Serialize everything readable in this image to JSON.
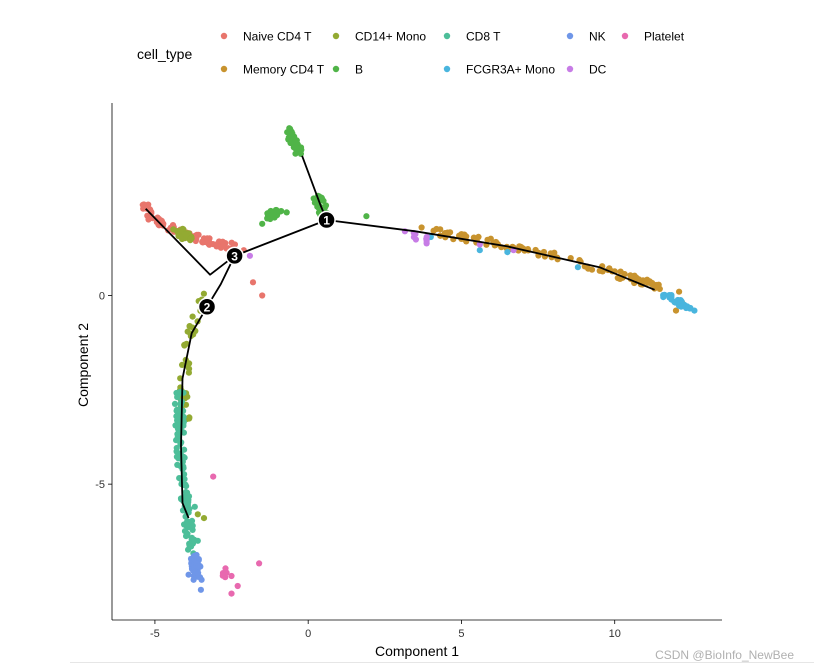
{
  "chart_data": {
    "type": "scatter",
    "title": "",
    "xlabel": "Component 1",
    "ylabel": "Component 2",
    "xlim": [
      -6.4,
      13.5
    ],
    "ylim": [
      -8.6,
      5.1
    ],
    "x_ticks": [
      -5,
      0,
      5,
      10
    ],
    "y_ticks": [
      -5,
      0
    ],
    "grid": false,
    "legend": {
      "title": "cell_type",
      "position": "top",
      "entries": [
        {
          "name": "Naive CD4 T",
          "color": "#E8756C"
        },
        {
          "name": "Memory CD4 T",
          "color": "#C8932E"
        },
        {
          "name": "CD14+ Mono",
          "color": "#93AA32"
        },
        {
          "name": "B",
          "color": "#50B448"
        },
        {
          "name": "CD8 T",
          "color": "#4DBE99"
        },
        {
          "name": "FCGR3A+ Mono",
          "color": "#49B5DE"
        },
        {
          "name": "NK",
          "color": "#6F96E8"
        },
        {
          "name": "DC",
          "color": "#C77CE6"
        },
        {
          "name": "Platelet",
          "color": "#E869AF"
        }
      ]
    },
    "trajectory": [
      {
        "points": [
          [
            -0.2,
            3.7
          ],
          [
            0.4,
            2.4
          ],
          [
            0.6,
            2.0
          ]
        ]
      },
      {
        "points": [
          [
            0.6,
            2.0
          ],
          [
            -2.4,
            1.05
          ]
        ]
      },
      {
        "points": [
          [
            0.6,
            2.0
          ],
          [
            3.5,
            1.7
          ],
          [
            6.5,
            1.3
          ],
          [
            9.5,
            0.75
          ],
          [
            11.3,
            0.15
          ]
        ]
      },
      {
        "points": [
          [
            -2.4,
            1.05
          ],
          [
            -3.2,
            0.55
          ],
          [
            -5.3,
            2.3
          ]
        ]
      },
      {
        "points": [
          [
            -2.4,
            1.05
          ],
          [
            -2.85,
            0.3
          ],
          [
            -3.3,
            -0.3
          ]
        ]
      },
      {
        "points": [
          [
            -3.3,
            -0.3
          ],
          [
            -3.8,
            -1.0
          ],
          [
            -4.1,
            -2.2
          ],
          [
            -4.15,
            -4.0
          ],
          [
            -4.1,
            -5.5
          ],
          [
            -3.9,
            -5.9
          ]
        ]
      }
    ],
    "branch_points": [
      {
        "label": "1",
        "x": 0.6,
        "y": 2.0
      },
      {
        "label": "2",
        "x": -3.3,
        "y": -0.3
      },
      {
        "label": "3",
        "x": -2.4,
        "y": 1.05
      }
    ],
    "series": [
      {
        "name": "Naive CD4 T",
        "segments": [
          [
            [
              -5.3,
              2.4
            ],
            [
              -5.1,
              2.05
            ],
            [
              -4.4,
              1.75
            ],
            [
              -3.4,
              1.45
            ],
            [
              -2.4,
              1.3
            ]
          ]
        ],
        "extra": [
          [
            -2.1,
            1.2
          ],
          [
            -1.8,
            0.35
          ],
          [
            -1.5,
            0.0
          ],
          [
            -3.7,
            1.5
          ],
          [
            -3.0,
            1.35
          ]
        ],
        "count": 95
      },
      {
        "name": "Memory CD4 T",
        "segments": [
          [
            [
              4.0,
              1.7
            ],
            [
              6.0,
              1.4
            ],
            [
              8.0,
              1.05
            ],
            [
              10.0,
              0.6
            ],
            [
              11.5,
              0.2
            ]
          ]
        ],
        "extra": [
          [
            12.1,
            0.1
          ],
          [
            12.2,
            -0.2
          ],
          [
            12.0,
            -0.4
          ],
          [
            3.7,
            1.8
          ],
          [
            5.0,
            1.5
          ]
        ],
        "count": 110
      },
      {
        "name": "CD14+ Mono",
        "segments": [
          [
            [
              -4.2,
              1.7
            ],
            [
              -3.9,
              1.5
            ]
          ],
          [
            [
              -3.4,
              0.0
            ],
            [
              -3.9,
              -1.2
            ],
            [
              -4.1,
              -2.5
            ],
            [
              -4.0,
              -3.3
            ]
          ]
        ],
        "extra": [
          [
            -3.6,
            -5.8
          ],
          [
            -3.4,
            -5.9
          ],
          [
            -4.4,
            1.75
          ]
        ],
        "count": 95
      },
      {
        "name": "B",
        "segments": [
          [
            [
              -0.7,
              4.4
            ],
            [
              -0.3,
              3.8
            ]
          ],
          [
            [
              0.3,
              2.6
            ],
            [
              0.5,
              2.2
            ]
          ],
          [
            [
              -1.3,
              2.1
            ],
            [
              -1.0,
              2.2
            ]
          ]
        ],
        "extra": [
          [
            1.9,
            2.1
          ],
          [
            -0.7,
            2.2
          ],
          [
            -1.5,
            1.9
          ]
        ],
        "count": 95
      },
      {
        "name": "CD8 T",
        "segments": [
          [
            [
              -4.2,
              -2.6
            ],
            [
              -4.2,
              -4.0
            ],
            [
              -4.0,
              -5.4
            ],
            [
              -3.8,
              -6.8
            ]
          ]
        ],
        "extra": [
          [
            -4.3,
            -3.2
          ],
          [
            -3.7,
            -5.6
          ],
          [
            -3.6,
            -6.5
          ],
          [
            -4.1,
            -4.6
          ]
        ],
        "count": 120
      },
      {
        "name": "FCGR3A+ Mono",
        "segments": [
          [
            [
              11.6,
              0.0
            ],
            [
              12.4,
              -0.3
            ]
          ]
        ],
        "extra": [
          [
            12.6,
            -0.4
          ],
          [
            6.5,
            1.15
          ],
          [
            8.8,
            0.75
          ],
          [
            4.0,
            1.55
          ],
          [
            5.6,
            1.2
          ]
        ],
        "count": 35
      },
      {
        "name": "NK",
        "segments": [
          [
            [
              -3.7,
              -6.9
            ],
            [
              -3.6,
              -7.5
            ]
          ]
        ],
        "extra": [
          [
            -3.5,
            -7.8
          ],
          [
            -3.9,
            -7.4
          ]
        ],
        "count": 50
      },
      {
        "name": "DC",
        "segments": [
          [
            [
              3.1,
              1.65
            ],
            [
              4.0,
              1.45
            ]
          ]
        ],
        "extra": [
          [
            5.6,
            1.35
          ],
          [
            -1.9,
            1.05
          ],
          [
            6.7,
            1.2
          ]
        ],
        "count": 12
      },
      {
        "name": "Platelet",
        "segments": [
          [
            [
              -2.7,
              -7.3
            ],
            [
              -2.6,
              -7.5
            ]
          ]
        ],
        "extra": [
          [
            -3.1,
            -4.8
          ],
          [
            -1.6,
            -7.1
          ],
          [
            -2.5,
            -7.9
          ],
          [
            -2.3,
            -7.7
          ]
        ],
        "count": 10
      }
    ]
  },
  "watermark": "CSDN @BioInfo_NewBee"
}
